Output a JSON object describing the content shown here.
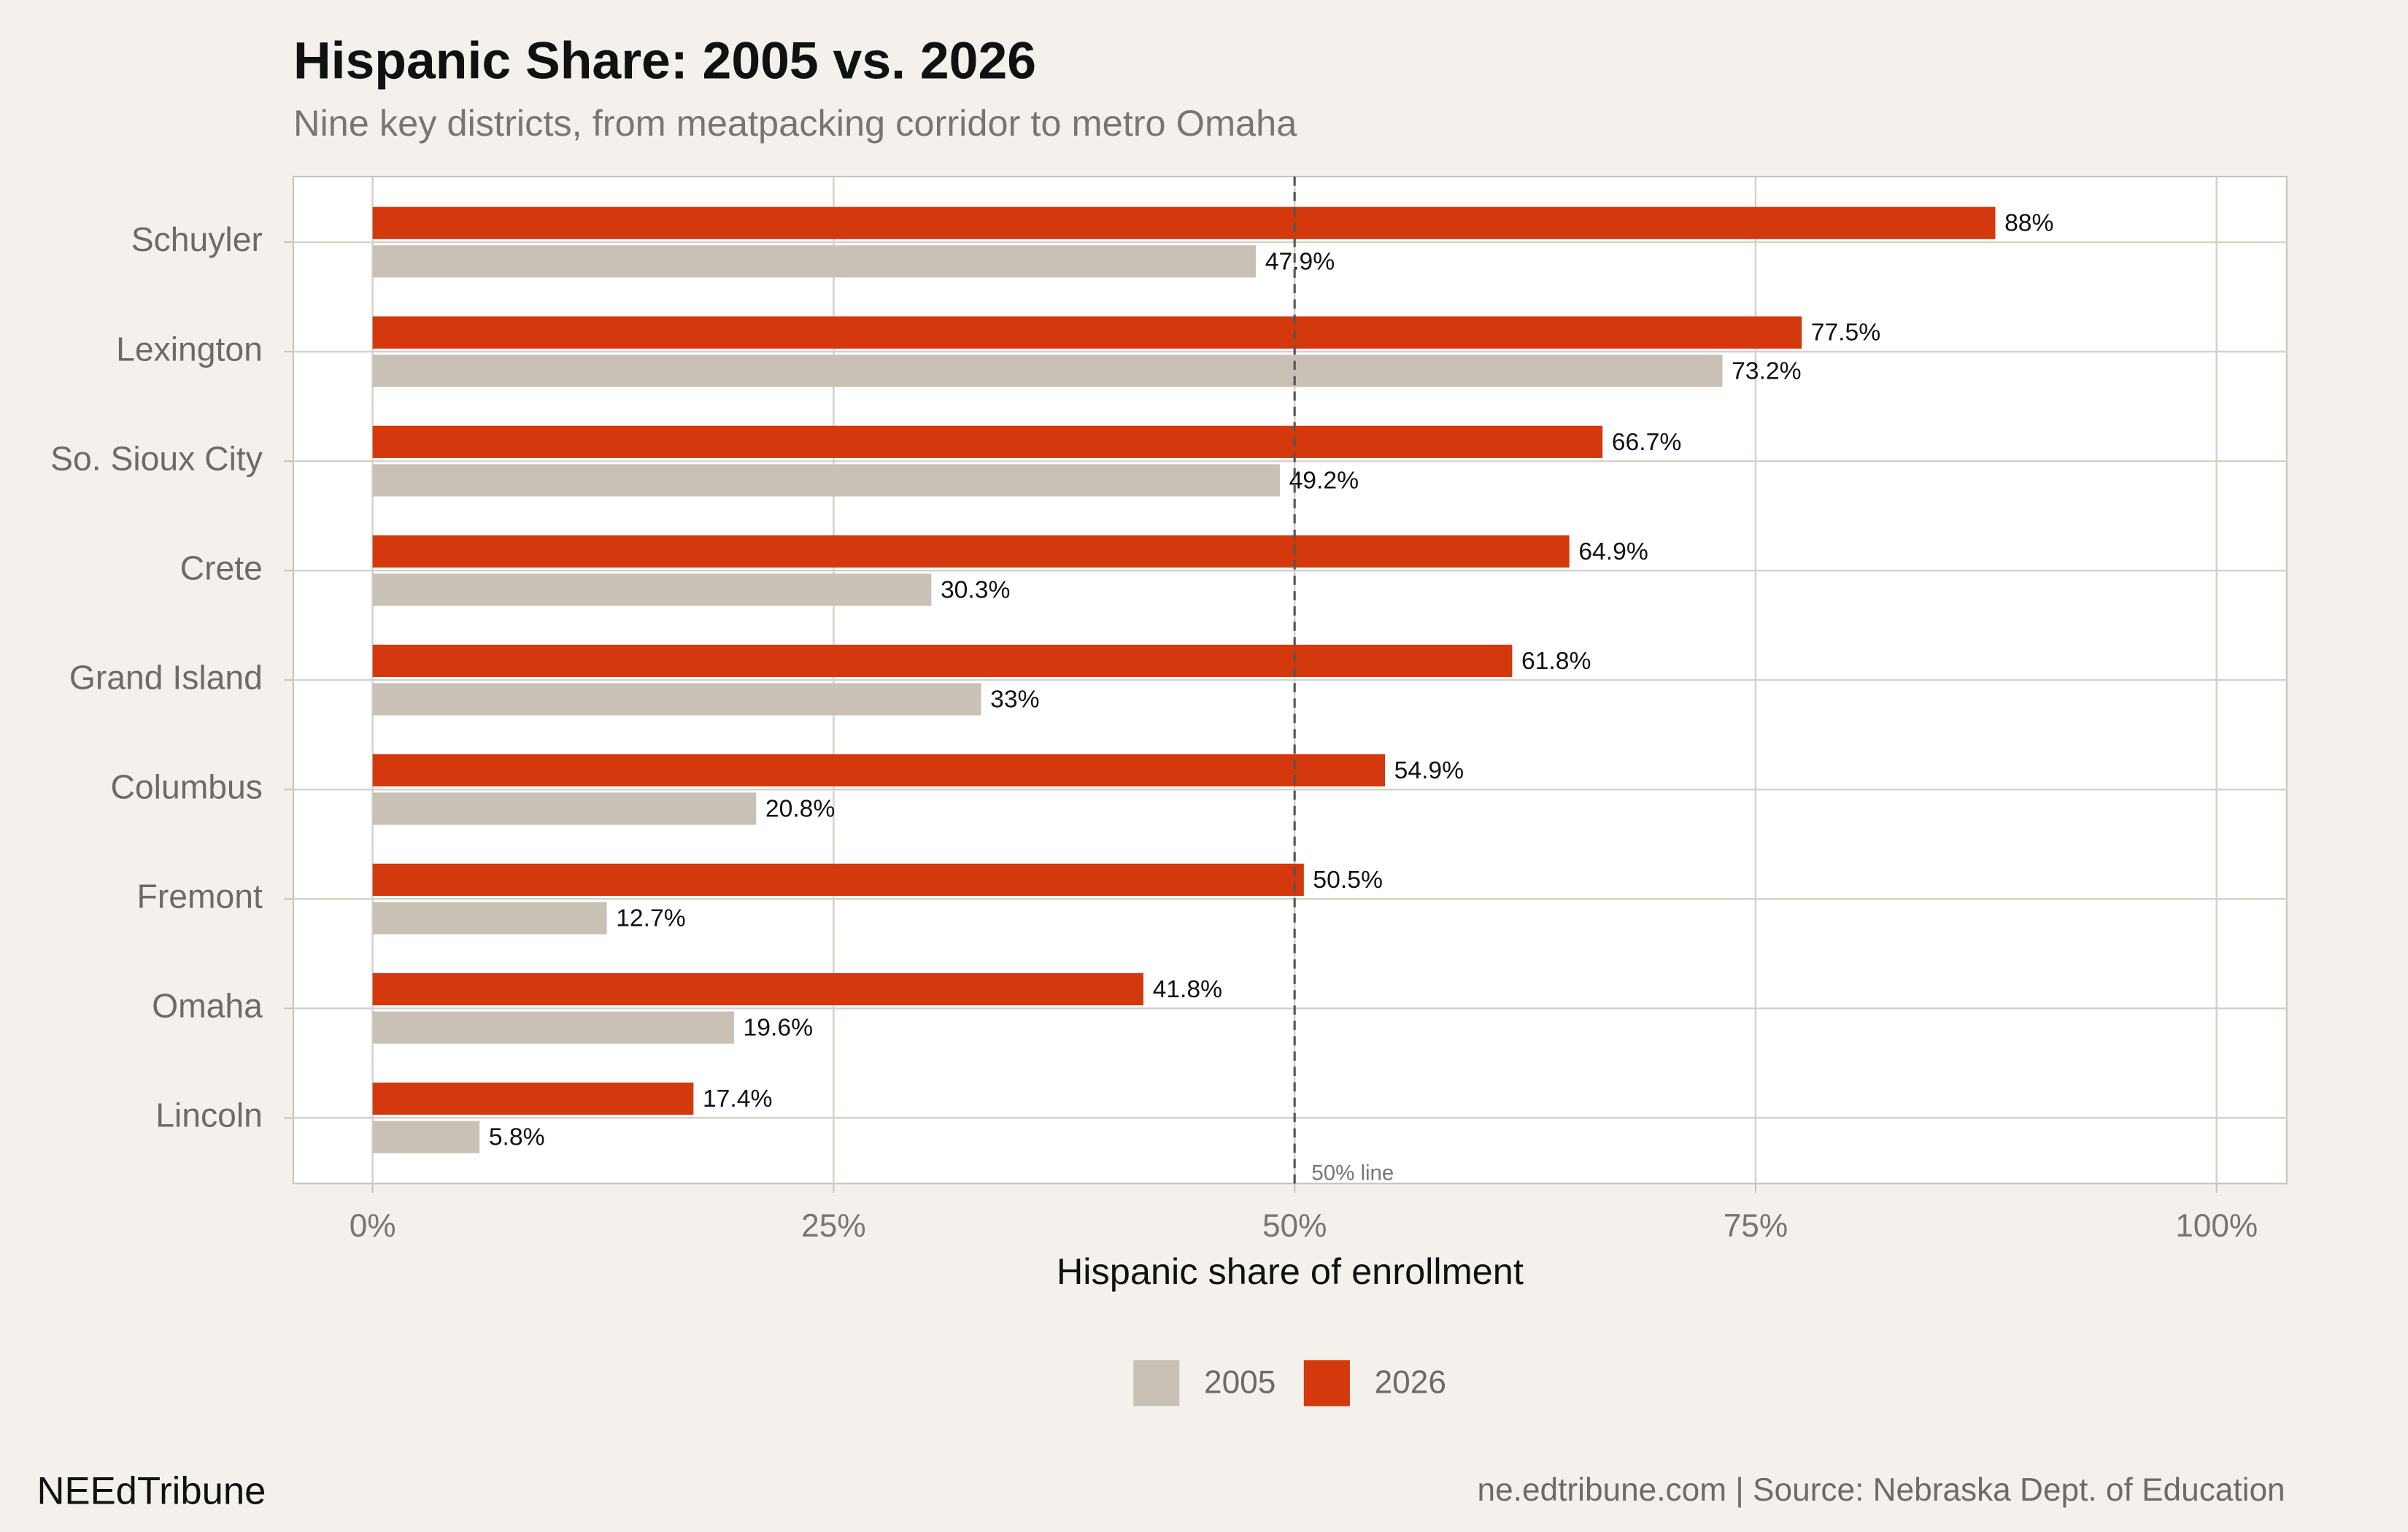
{
  "chart_data": {
    "type": "bar",
    "orientation": "horizontal",
    "title": "Hispanic Share: 2005 vs. 2026",
    "subtitle": "Nine key districts, from meatpacking corridor to metro Omaha",
    "x_label": "Hispanic share of enrollment",
    "categories": [
      "Schuyler",
      "Lexington",
      "So. Sioux City",
      "Crete",
      "Grand Island",
      "Columbus",
      "Fremont",
      "Omaha",
      "Lincoln"
    ],
    "series": [
      {
        "name": "2005",
        "color": "#c9c1b6",
        "values": [
          47.9,
          73.2,
          49.2,
          30.3,
          33,
          20.8,
          12.7,
          19.6,
          5.8
        ],
        "value_labels": [
          "47.9%",
          "73.2%",
          "49.2%",
          "30.3%",
          "33%",
          "20.8%",
          "12.7%",
          "19.6%",
          "5.8%"
        ]
      },
      {
        "name": "2026",
        "color": "#d4380d",
        "values": [
          88,
          77.5,
          66.7,
          64.9,
          61.8,
          54.9,
          50.5,
          41.8,
          17.4
        ],
        "value_labels": [
          "88%",
          "77.5%",
          "66.7%",
          "64.9%",
          "61.8%",
          "54.9%",
          "50.5%",
          "41.8%",
          "17.4%"
        ]
      }
    ],
    "xlim": [
      -4.3,
      103.8
    ],
    "xticks": [
      {
        "value": 0,
        "label": "0%"
      },
      {
        "value": 25,
        "label": "25%"
      },
      {
        "value": 50,
        "label": "50%"
      },
      {
        "value": 75,
        "label": "75%"
      },
      {
        "value": 100,
        "label": "100%"
      }
    ],
    "grid": true,
    "legend": "bottom",
    "reference_line": {
      "value": 50,
      "label": "50% line"
    },
    "brand": "NEEdTribune",
    "source": "ne.edtribune.com | Source: Nebraska Dept. of Education"
  }
}
